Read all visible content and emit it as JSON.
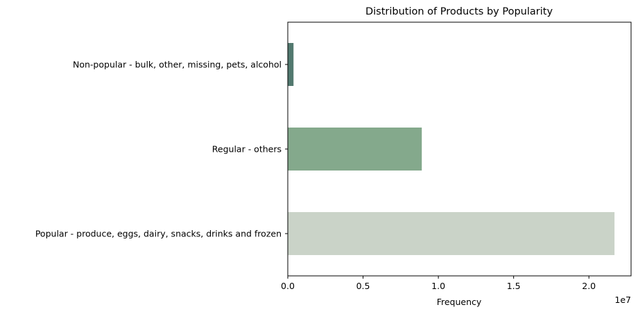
{
  "chart_data": {
    "type": "bar",
    "orientation": "horizontal",
    "title": "Distribution of Products by Popularity",
    "xlabel": "Frequency",
    "ylabel": "",
    "x_scale_note": "1e7",
    "xlim": [
      0,
      2.28
    ],
    "x_ticks": [
      0.0,
      0.5,
      1.0,
      1.5,
      2.0
    ],
    "x_tick_labels": [
      "0.0",
      "0.5",
      "1.0",
      "1.5",
      "2.0"
    ],
    "categories": [
      "Popular - produce, eggs, dairy, snacks, drinks and frozen",
      "Regular - others",
      "Non-popular - bulk, other, missing, pets, alcohol"
    ],
    "values": [
      2.17,
      0.89,
      0.038
    ],
    "bar_colors": [
      "#cad3c8",
      "#84a98c",
      "#52796f"
    ],
    "grid": false,
    "legend": "none"
  }
}
